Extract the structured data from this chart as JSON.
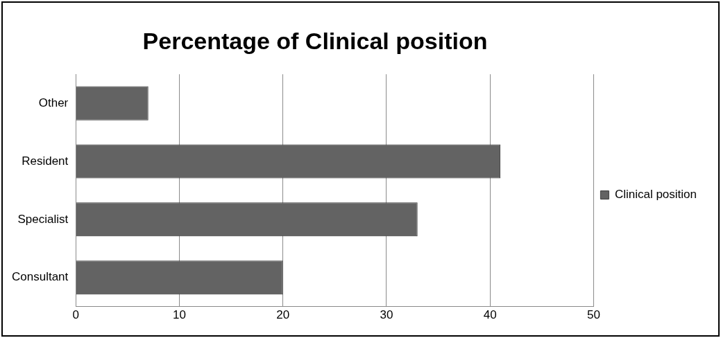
{
  "chart_data": {
    "type": "bar",
    "orientation": "horizontal",
    "title": "Percentage of Clinical position",
    "categories": [
      "Other",
      "Resident",
      "Specialist",
      "Consultant"
    ],
    "series": [
      {
        "name": "Clinical position",
        "color": "#636363",
        "values": [
          7,
          41,
          33,
          20
        ]
      }
    ],
    "xlim": [
      0,
      50
    ],
    "xticks": [
      0,
      10,
      20,
      30,
      40,
      50
    ],
    "grid": "x",
    "legend": "right"
  }
}
